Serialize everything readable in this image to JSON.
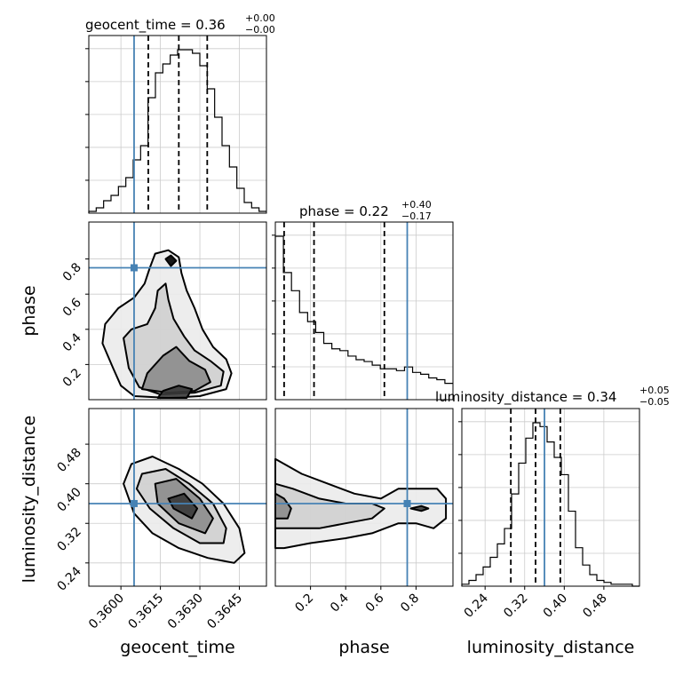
{
  "chart_data": {
    "type": "corner",
    "parameters": [
      "geocent_time",
      "phase",
      "luminosity_distance"
    ],
    "titles": [
      {
        "text": "geocent_time = 0.36",
        "upper": "+0.00",
        "lower": "−0.00"
      },
      {
        "text": "phase = 0.22",
        "upper": "+0.40",
        "lower": "−0.17"
      },
      {
        "text": "luminosity_distance = 0.34",
        "upper": "+0.05",
        "lower": "−0.05"
      }
    ],
    "axis_labels": {
      "x": [
        "geocent_time",
        "phase",
        "luminosity_distance"
      ],
      "y": [
        "phase",
        "luminosity_distance"
      ]
    },
    "ranges": {
      "geocent_time": [
        0.35878,
        0.36553
      ],
      "phase": [
        0.0,
        1.01
      ],
      "luminosity_distance": [
        0.193,
        0.552
      ]
    },
    "ticks": {
      "geocent_time": [
        "0.3600",
        "0.3615",
        "0.3630",
        "0.3645"
      ],
      "phase": [
        "0.2",
        "0.4",
        "0.6",
        "0.8"
      ],
      "luminosity_distance": [
        "0.24",
        "0.32",
        "0.40",
        "0.48"
      ]
    },
    "truth": {
      "geocent_time": 0.3605,
      "phase": 0.75,
      "luminosity_distance": 0.36
    },
    "quantiles": {
      "geocent_time": [
        0.36104,
        0.3622,
        0.36328
      ],
      "phase": [
        0.05,
        0.22,
        0.62
      ],
      "luminosity_distance": [
        0.292,
        0.342,
        0.392
      ]
    },
    "histograms": {
      "geocent_time": [
        0.01,
        0.03,
        0.07,
        0.1,
        0.15,
        0.2,
        0.3,
        0.38,
        0.65,
        0.79,
        0.84,
        0.89,
        0.92,
        0.92,
        0.9,
        0.83,
        0.7,
        0.54,
        0.38,
        0.26,
        0.14,
        0.06,
        0.03,
        0.01
      ],
      "phase": [
        0.9,
        0.7,
        0.6,
        0.48,
        0.43,
        0.37,
        0.31,
        0.28,
        0.27,
        0.24,
        0.22,
        0.21,
        0.19,
        0.17,
        0.17,
        0.16,
        0.18,
        0.15,
        0.14,
        0.12,
        0.11,
        0.09
      ],
      "luminosity_distance": [
        0.01,
        0.03,
        0.06,
        0.1,
        0.15,
        0.22,
        0.3,
        0.48,
        0.64,
        0.77,
        0.85,
        0.83,
        0.75,
        0.67,
        0.58,
        0.39,
        0.2,
        0.11,
        0.06,
        0.03,
        0.02,
        0.01,
        0.01,
        0.01,
        0.0
      ]
    },
    "contours": {
      "geocent_time_vs_phase": [
        [
          [
            0.3594,
            0.43
          ],
          [
            0.3599,
            0.52
          ],
          [
            0.3605,
            0.58
          ],
          [
            0.3609,
            0.66
          ],
          [
            0.3611,
            0.75
          ],
          [
            0.3613,
            0.83
          ],
          [
            0.3618,
            0.85
          ],
          [
            0.3622,
            0.81
          ],
          [
            0.3623,
            0.72
          ],
          [
            0.3625,
            0.62
          ],
          [
            0.3628,
            0.52
          ],
          [
            0.3631,
            0.4
          ],
          [
            0.3635,
            0.3
          ],
          [
            0.364,
            0.23
          ],
          [
            0.3642,
            0.15
          ],
          [
            0.364,
            0.06
          ],
          [
            0.363,
            0.02
          ],
          [
            0.3618,
            0.01
          ],
          [
            0.3605,
            0.02
          ],
          [
            0.36,
            0.08
          ],
          [
            0.3597,
            0.18
          ],
          [
            0.3593,
            0.32
          ]
        ],
        [
          [
            0.3601,
            0.35
          ],
          [
            0.3604,
            0.4
          ],
          [
            0.361,
            0.43
          ],
          [
            0.3613,
            0.52
          ],
          [
            0.3614,
            0.62
          ],
          [
            0.3617,
            0.66
          ],
          [
            0.3618,
            0.57
          ],
          [
            0.362,
            0.46
          ],
          [
            0.3624,
            0.36
          ],
          [
            0.3628,
            0.28
          ],
          [
            0.3634,
            0.22
          ],
          [
            0.3639,
            0.16
          ],
          [
            0.3638,
            0.08
          ],
          [
            0.3628,
            0.04
          ],
          [
            0.3615,
            0.03
          ],
          [
            0.3607,
            0.07
          ],
          [
            0.3603,
            0.18
          ]
        ],
        [
          [
            0.3608,
            0.06
          ],
          [
            0.361,
            0.15
          ],
          [
            0.3616,
            0.25
          ],
          [
            0.3621,
            0.3
          ],
          [
            0.3626,
            0.22
          ],
          [
            0.3632,
            0.17
          ],
          [
            0.3634,
            0.1
          ],
          [
            0.3628,
            0.05
          ],
          [
            0.3618,
            0.04
          ]
        ],
        [
          [
            0.3614,
            0.01
          ],
          [
            0.3616,
            0.05
          ],
          [
            0.3622,
            0.08
          ],
          [
            0.3627,
            0.06
          ],
          [
            0.3625,
            0.01
          ]
        ],
        [
          [
            0.3617,
            0.8
          ],
          [
            0.3619,
            0.76
          ],
          [
            0.3621,
            0.79
          ],
          [
            0.3619,
            0.82
          ]
        ]
      ],
      "geocent_time_vs_luminosity_distance": [
        [
          [
            0.3604,
            0.44
          ],
          [
            0.3612,
            0.455
          ],
          [
            0.3622,
            0.43
          ],
          [
            0.3631,
            0.4
          ],
          [
            0.3639,
            0.36
          ],
          [
            0.3645,
            0.31
          ],
          [
            0.3647,
            0.26
          ],
          [
            0.3643,
            0.24
          ],
          [
            0.3633,
            0.25
          ],
          [
            0.3622,
            0.27
          ],
          [
            0.3612,
            0.3
          ],
          [
            0.3605,
            0.34
          ],
          [
            0.3601,
            0.4
          ]
        ],
        [
          [
            0.3608,
            0.42
          ],
          [
            0.3617,
            0.43
          ],
          [
            0.3626,
            0.4
          ],
          [
            0.3635,
            0.36
          ],
          [
            0.364,
            0.31
          ],
          [
            0.3639,
            0.28
          ],
          [
            0.363,
            0.28
          ],
          [
            0.362,
            0.31
          ],
          [
            0.3611,
            0.35
          ],
          [
            0.3606,
            0.39
          ]
        ],
        [
          [
            0.3613,
            0.4
          ],
          [
            0.3621,
            0.41
          ],
          [
            0.363,
            0.37
          ],
          [
            0.3635,
            0.33
          ],
          [
            0.3632,
            0.3
          ],
          [
            0.3622,
            0.32
          ],
          [
            0.3614,
            0.36
          ]
        ],
        [
          [
            0.3618,
            0.37
          ],
          [
            0.3624,
            0.38
          ],
          [
            0.3629,
            0.35
          ],
          [
            0.3627,
            0.33
          ],
          [
            0.362,
            0.35
          ]
        ]
      ],
      "phase_vs_luminosity_distance": [
        [
          [
            0.0,
            0.45
          ],
          [
            0.15,
            0.42
          ],
          [
            0.3,
            0.4
          ],
          [
            0.45,
            0.38
          ],
          [
            0.6,
            0.37
          ],
          [
            0.7,
            0.39
          ],
          [
            0.82,
            0.39
          ],
          [
            0.92,
            0.39
          ],
          [
            0.97,
            0.37
          ],
          [
            0.97,
            0.33
          ],
          [
            0.9,
            0.31
          ],
          [
            0.8,
            0.32
          ],
          [
            0.7,
            0.32
          ],
          [
            0.55,
            0.3
          ],
          [
            0.4,
            0.29
          ],
          [
            0.2,
            0.28
          ],
          [
            0.05,
            0.27
          ],
          [
            0.0,
            0.27
          ]
        ],
        [
          [
            0.0,
            0.4
          ],
          [
            0.1,
            0.39
          ],
          [
            0.25,
            0.37
          ],
          [
            0.4,
            0.36
          ],
          [
            0.55,
            0.36
          ],
          [
            0.62,
            0.35
          ],
          [
            0.55,
            0.33
          ],
          [
            0.4,
            0.32
          ],
          [
            0.25,
            0.31
          ],
          [
            0.1,
            0.31
          ],
          [
            0.0,
            0.31
          ]
        ],
        [
          [
            0.0,
            0.38
          ],
          [
            0.05,
            0.37
          ],
          [
            0.09,
            0.35
          ],
          [
            0.07,
            0.33
          ],
          [
            0.0,
            0.33
          ]
        ],
        [
          [
            0.77,
            0.35
          ],
          [
            0.83,
            0.355
          ],
          [
            0.87,
            0.35
          ],
          [
            0.83,
            0.345
          ]
        ]
      ]
    }
  }
}
